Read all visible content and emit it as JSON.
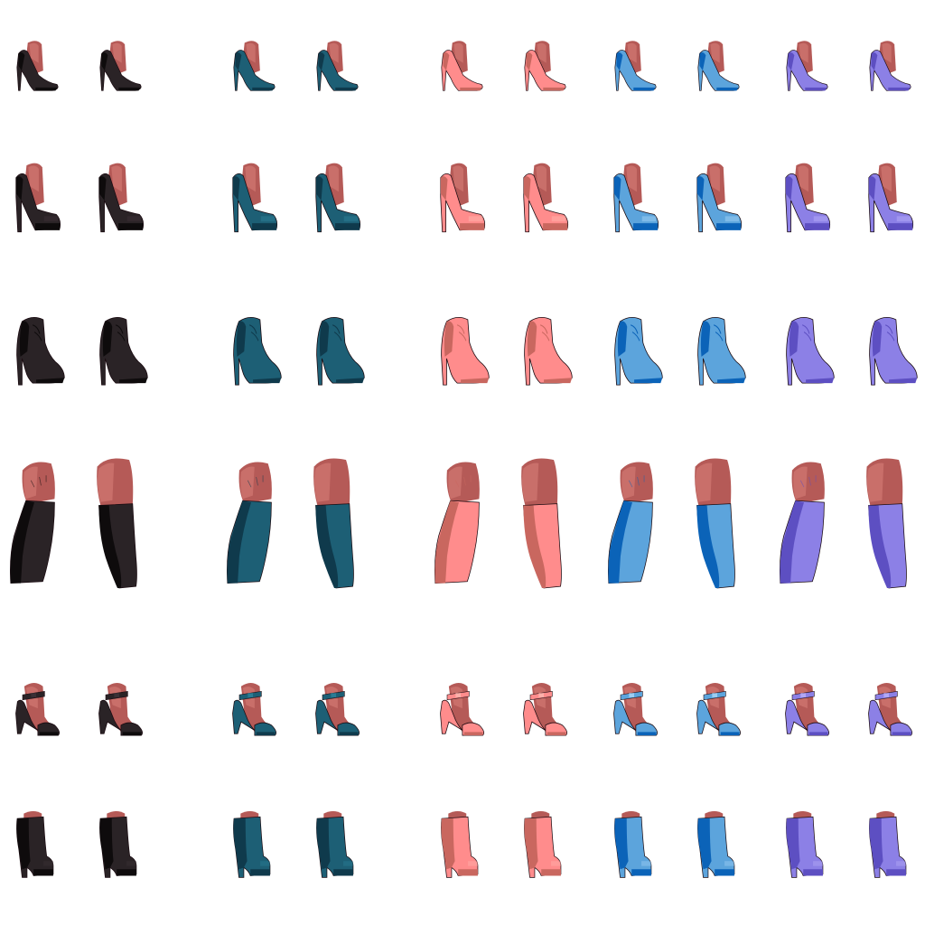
{
  "sprite_sheet": {
    "skin_tone": "#b55a57",
    "skin_highlight": "#c96f6a",
    "outline": "#1a0a10",
    "colorways": [
      {
        "name": "black",
        "main": "#2a2326",
        "shade": "#0e0b0c",
        "accent": "#3a3035"
      },
      {
        "name": "teal",
        "main": "#1d5f75",
        "shade": "#0f3a4c",
        "accent": "#2b7c94"
      },
      {
        "name": "pink",
        "main": "#ff8c8c",
        "shade": "#c9675f",
        "accent": "#ffb0aa"
      },
      {
        "name": "blue",
        "main": "#5ca4dc",
        "shade": "#0b63b8",
        "accent": "#9ccdf2"
      },
      {
        "name": "purple",
        "main": "#8c80e6",
        "shade": "#5d4fc2",
        "accent": "#b2a8f5"
      }
    ],
    "rows": [
      {
        "style": "pump",
        "icon": "pump-heel-icon"
      },
      {
        "style": "platform-pump",
        "icon": "platform-pump-icon"
      },
      {
        "style": "ankle-bootie",
        "icon": "ankle-bootie-icon"
      },
      {
        "style": "knee-boot-shaft",
        "icon": "boot-shaft-icon"
      },
      {
        "style": "ankle-strap-sandal",
        "icon": "strap-sandal-icon"
      },
      {
        "style": "platform-bootie",
        "icon": "platform-bootie-icon"
      }
    ]
  }
}
